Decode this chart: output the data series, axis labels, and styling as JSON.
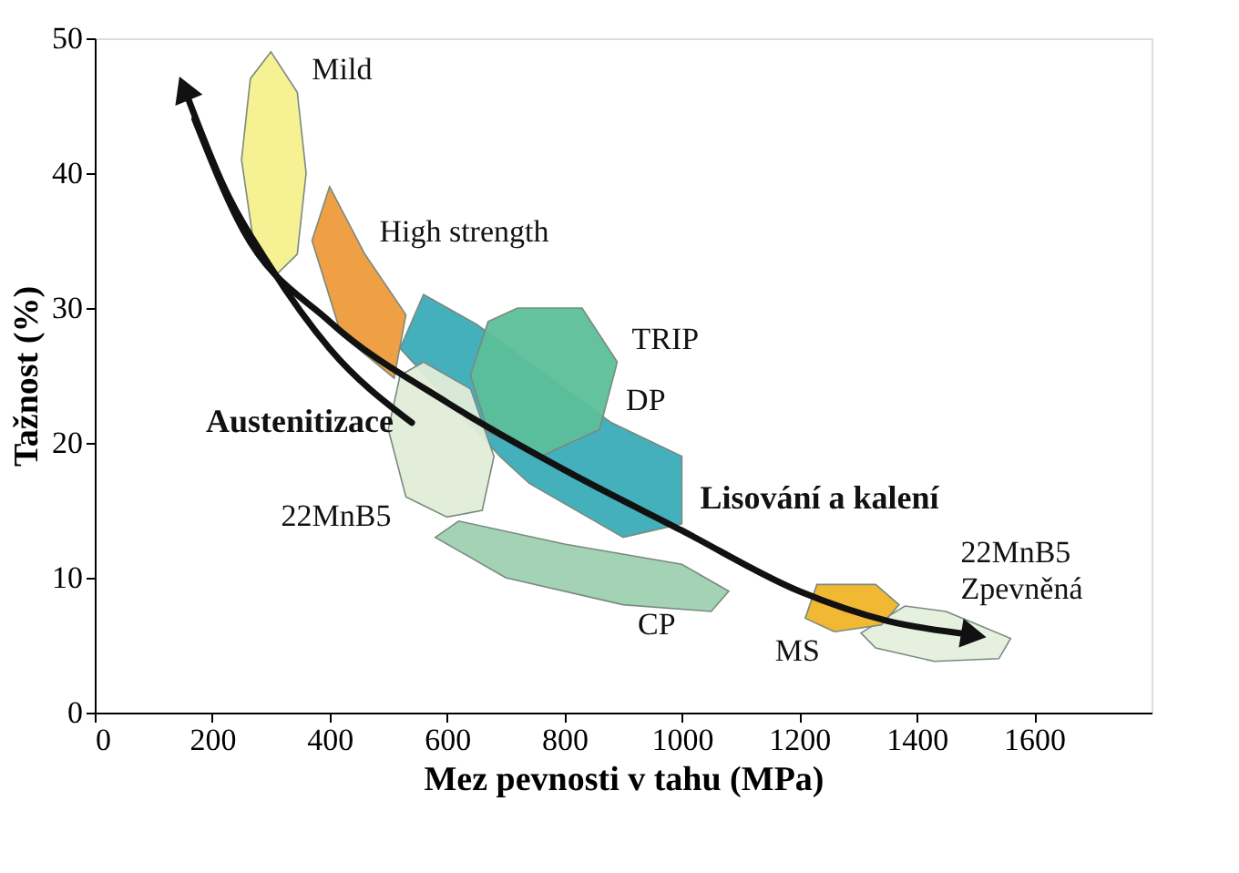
{
  "chart_data": {
    "type": "line",
    "xlabel": "Mez pevnosti v tahu (MPa)",
    "ylabel": "Tažnost (%)",
    "xlim": [
      0,
      1800
    ],
    "ylim": [
      0,
      50
    ],
    "xticks": [
      0,
      200,
      400,
      600,
      800,
      1000,
      1200,
      1400,
      1600
    ],
    "yticks": [
      0,
      10,
      20,
      30,
      40,
      50
    ],
    "grid": false,
    "series": [
      {
        "type": "area",
        "name": "High strength",
        "color": "#ee9a3a",
        "x": [
          460,
          530,
          510,
          420,
          370,
          400,
          460
        ],
        "values": [
          34,
          29.5,
          24.8,
          28,
          35,
          39,
          34
        ]
      },
      {
        "type": "area",
        "name": "DP",
        "color": "#3aacb8",
        "x": [
          880,
          1000,
          1000,
          900,
          740,
          690,
          520,
          560,
          650,
          880
        ],
        "values": [
          21.5,
          19,
          14,
          13,
          17,
          19,
          27,
          31,
          28.8,
          21.5
        ]
      },
      {
        "type": "area",
        "name": "CP",
        "color": "#9fd0b0",
        "x": [
          900,
          700,
          580,
          620,
          800,
          1000,
          1080,
          1050,
          900
        ],
        "values": [
          8,
          10,
          13,
          14.2,
          12.5,
          11,
          9,
          7.5,
          8
        ]
      },
      {
        "type": "area",
        "name": "TRIP",
        "color": "#5cbf9a",
        "x": [
          890,
          860,
          760,
          670,
          640,
          670,
          720,
          830,
          890
        ],
        "values": [
          26,
          21,
          19,
          20.8,
          25,
          29,
          30,
          30,
          26
        ]
      },
      {
        "type": "area",
        "name": "22MnB5",
        "color": "#e0ecd8",
        "x": [
          530,
          500,
          520,
          560,
          640,
          680,
          660,
          600,
          530
        ],
        "values": [
          16,
          21,
          25,
          26,
          24,
          19,
          15,
          14.5,
          16
        ]
      },
      {
        "type": "area",
        "name": "Mild",
        "color": "#f5f08c",
        "x": [
          345,
          360,
          345,
          310,
          270,
          250,
          265,
          300,
          345
        ],
        "values": [
          46,
          40,
          34,
          32.5,
          35,
          41,
          47,
          49,
          46
        ]
      },
      {
        "type": "area",
        "name": "22MnB5\nZpevněná",
        "color": "#e4f0dc",
        "x": [
          1450,
          1560,
          1540,
          1430,
          1330,
          1305,
          1380,
          1450
        ],
        "values": [
          7.5,
          5.5,
          4,
          3.8,
          4.8,
          5.9,
          7.9,
          7.5
        ]
      },
      {
        "type": "area",
        "name": "MS",
        "color": "#f0b428",
        "x": [
          1260,
          1210,
          1230,
          1330,
          1370,
          1340,
          1260
        ],
        "values": [
          6,
          7,
          9.5,
          9.5,
          8,
          6.5,
          6
        ]
      },
      {
        "color": "#111111",
        "x": [
          540,
          400,
          300,
          220,
          155
        ],
        "values": [
          21.5,
          27,
          33,
          39,
          46
        ]
      },
      {
        "color": "#111111",
        "x": [
          170,
          250,
          400,
          600,
          800,
          1000,
          1200,
          1350,
          1490
        ],
        "values": [
          44,
          36,
          29,
          23,
          18,
          13.5,
          9,
          6.8,
          5.8
        ]
      }
    ],
    "annotations": [
      {
        "text": "Austenitizace",
        "x": 540,
        "y": 21.5
      },
      {
        "text": "Lisování a kalení",
        "x": 1000,
        "y": 13.5
      }
    ]
  }
}
